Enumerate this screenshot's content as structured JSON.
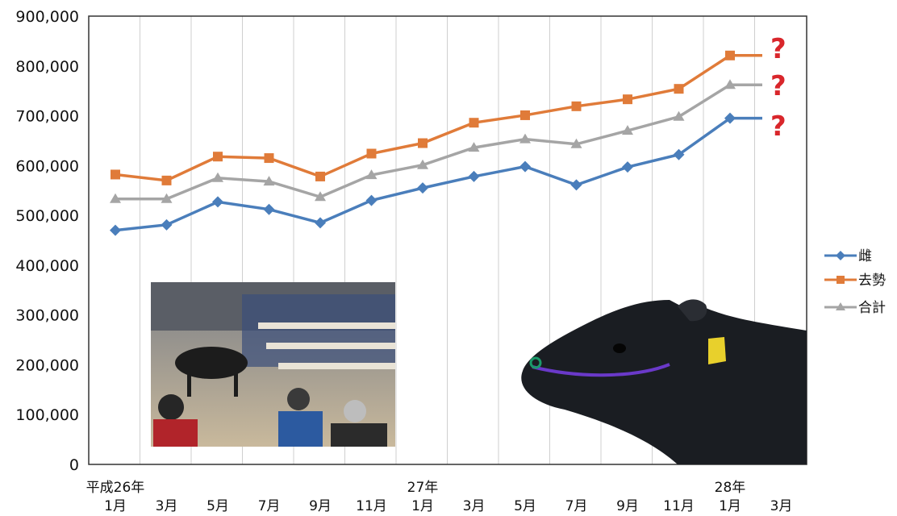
{
  "chart_data": {
    "type": "line",
    "categories": [
      "1月",
      "3月",
      "5月",
      "7月",
      "9月",
      "11月",
      "1月",
      "3月",
      "5月",
      "7月",
      "9月",
      "11月",
      "1月",
      "3月"
    ],
    "era_labels": [
      "平成26年",
      "27年",
      "28年"
    ],
    "era_positions": [
      0,
      6,
      12
    ],
    "ylim": [
      0,
      900000
    ],
    "yticks": [
      "0",
      "100,000",
      "200,000",
      "300,000",
      "400,000",
      "500,000",
      "600,000",
      "700,000",
      "800,000",
      "900,000"
    ],
    "grid": "vertical",
    "legend_position": "right",
    "series": [
      {
        "name": "雌",
        "color": "#4a7ebb",
        "marker": "diamond",
        "values": [
          470000,
          481000,
          527000,
          512000,
          485000,
          530000,
          555000,
          578000,
          598000,
          561000,
          597000,
          622000,
          695000,
          null
        ],
        "dashed_end": 695000
      },
      {
        "name": "去勢",
        "color": "#e07b39",
        "marker": "square",
        "values": [
          582000,
          570000,
          618000,
          615000,
          578000,
          624000,
          645000,
          686000,
          701000,
          719000,
          733000,
          754000,
          821000,
          null
        ],
        "dashed_end": 821000
      },
      {
        "name": "合計",
        "color": "#a5a5a5",
        "marker": "triangle",
        "values": [
          533000,
          533000,
          575000,
          568000,
          537000,
          581000,
          601000,
          636000,
          653000,
          643000,
          670000,
          698000,
          762000,
          null
        ],
        "dashed_end": 762000
      }
    ],
    "annotations": [
      "?",
      "?",
      "?"
    ]
  },
  "images": {
    "photo": "auction-hall-photo",
    "cow": "cow-head-image"
  }
}
